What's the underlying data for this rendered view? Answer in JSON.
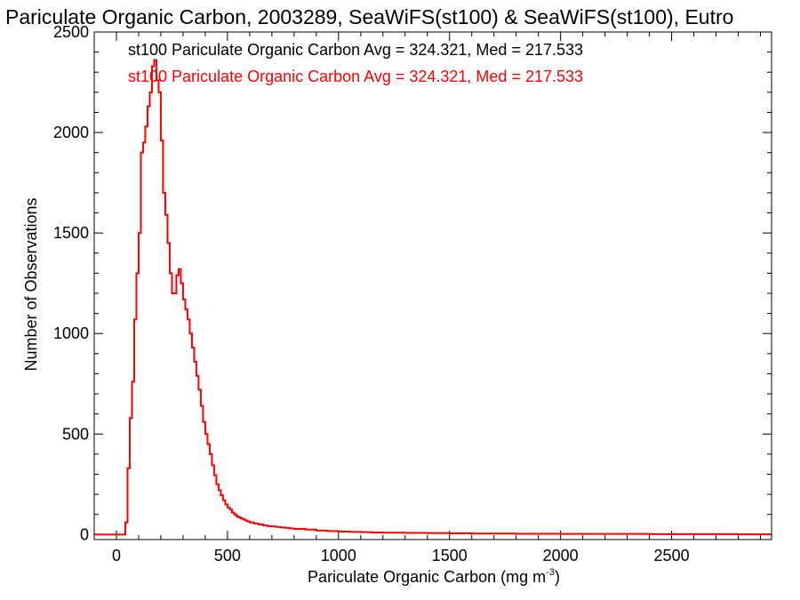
{
  "chart_data": {
    "type": "histogram",
    "title": "Pariculate Organic Carbon, 2003289, SeaWiFS(st100) & SeaWiFS(st100), Eutro",
    "xlabel": "Pariculate Organic Carbon (mg m",
    "xlabel_sup": "-3",
    "xlabel_close": ")",
    "ylabel": "Number of Observations",
    "xlim": [
      -100,
      2950
    ],
    "ylim": [
      -25,
      2500
    ],
    "xticks": [
      0,
      500,
      1000,
      1500,
      2000,
      2500
    ],
    "yticks": [
      0,
      500,
      1000,
      1500,
      2000,
      2500
    ],
    "grid": false,
    "legend_placement": "top-left",
    "annotations": [
      {
        "text": "st100 Pariculate Organic Carbon Avg = 324.321, Med = 217.533",
        "color": "#000000"
      },
      {
        "text": "st100 Pariculate Organic Carbon Avg = 324.321, Med = 217.533",
        "color": "#ff0000"
      }
    ],
    "series": [
      {
        "color": "#ff0000",
        "bin_width": 10,
        "points": [
          [
            -100,
            0
          ],
          [
            30,
            0
          ],
          [
            40,
            60
          ],
          [
            50,
            330
          ],
          [
            60,
            580
          ],
          [
            70,
            760
          ],
          [
            80,
            1070
          ],
          [
            90,
            1300
          ],
          [
            100,
            1500
          ],
          [
            110,
            1900
          ],
          [
            120,
            1950
          ],
          [
            130,
            2030
          ],
          [
            140,
            2130
          ],
          [
            150,
            2200
          ],
          [
            160,
            2330
          ],
          [
            170,
            2360
          ],
          [
            180,
            2260
          ],
          [
            190,
            2200
          ],
          [
            200,
            1960
          ],
          [
            210,
            1700
          ],
          [
            220,
            1590
          ],
          [
            230,
            1450
          ],
          [
            240,
            1300
          ],
          [
            250,
            1200
          ],
          [
            260,
            1200
          ],
          [
            270,
            1290
          ],
          [
            280,
            1320
          ],
          [
            290,
            1250
          ],
          [
            300,
            1170
          ],
          [
            310,
            1120
          ],
          [
            320,
            1070
          ],
          [
            330,
            1000
          ],
          [
            340,
            930
          ],
          [
            350,
            860
          ],
          [
            360,
            790
          ],
          [
            370,
            720
          ],
          [
            380,
            640
          ],
          [
            390,
            560
          ],
          [
            400,
            500
          ],
          [
            410,
            450
          ],
          [
            420,
            400
          ],
          [
            430,
            345
          ],
          [
            440,
            295
          ],
          [
            450,
            250
          ],
          [
            460,
            220
          ],
          [
            470,
            195
          ],
          [
            480,
            170
          ],
          [
            490,
            150
          ],
          [
            500,
            135
          ],
          [
            510,
            125
          ],
          [
            520,
            110
          ],
          [
            530,
            100
          ],
          [
            540,
            90
          ],
          [
            550,
            85
          ],
          [
            560,
            80
          ],
          [
            570,
            75
          ],
          [
            580,
            70
          ],
          [
            590,
            65
          ],
          [
            600,
            60
          ],
          [
            620,
            55
          ],
          [
            640,
            50
          ],
          [
            660,
            45
          ],
          [
            680,
            42
          ],
          [
            700,
            40
          ],
          [
            720,
            38
          ],
          [
            740,
            35
          ],
          [
            760,
            33
          ],
          [
            780,
            30
          ],
          [
            800,
            28
          ],
          [
            850,
            25
          ],
          [
            900,
            20
          ],
          [
            950,
            17
          ],
          [
            1000,
            15
          ],
          [
            1050,
            13
          ],
          [
            1100,
            12
          ],
          [
            1150,
            10
          ],
          [
            1200,
            9
          ],
          [
            1300,
            8
          ],
          [
            1400,
            7
          ],
          [
            1500,
            6
          ],
          [
            1600,
            5
          ],
          [
            1700,
            5
          ],
          [
            1800,
            4
          ],
          [
            1900,
            4
          ],
          [
            2000,
            3
          ],
          [
            2200,
            3
          ],
          [
            2400,
            2
          ],
          [
            2600,
            2
          ],
          [
            2800,
            1
          ],
          [
            2940,
            1
          ]
        ]
      }
    ]
  }
}
